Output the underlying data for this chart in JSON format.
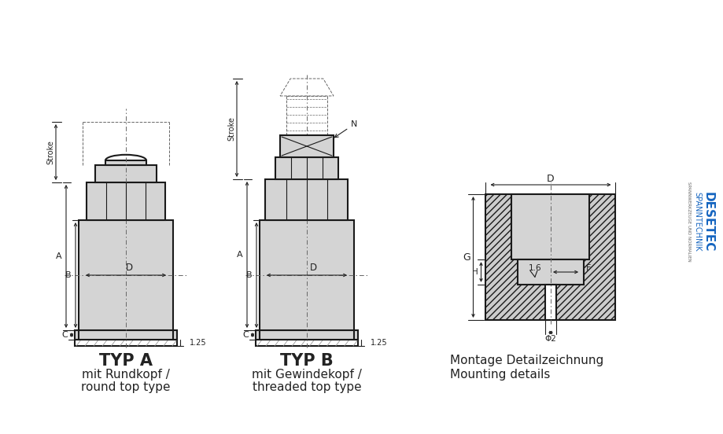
{
  "bg_color": "#ffffff",
  "line_color": "#1a1a1a",
  "fill_color": "#d4d4d4",
  "fill_light": "#e8e8e8",
  "typ_a_label": "TYP A",
  "typ_a_sub1": "mit Rundkopf /",
  "typ_a_sub2": "round top type",
  "typ_b_label": "TYP B",
  "typ_b_sub1": "mit Gewindekopf /",
  "typ_b_sub2": "threaded top type",
  "montage_label": "Montage Detailzeichnung",
  "montage_sub": "Mounting details",
  "brand_desetec": "DESETEC",
  "brand_spanntechnik": "SPANNTECHNIK",
  "brand_sub": "SPANNWERKZEUGE UND NORMALIEN",
  "brand_color": "#1565C0",
  "brand_sub_color": "#666666",
  "dim_color": "#222222",
  "dash_color": "#666666",
  "hatch_bg": "#cccccc"
}
